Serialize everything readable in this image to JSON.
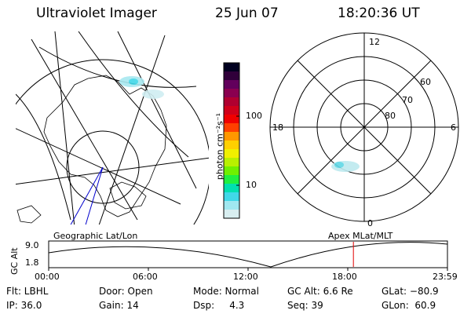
{
  "header": {
    "instrument": "Ultraviolet Imager",
    "date": "25 Jun 07",
    "time": "18:20:36 UT"
  },
  "left_panel": {
    "label": "Geographic Lat/Lon"
  },
  "right_panel": {
    "label": "Apex  MLat/MLT",
    "mlt_labels": [
      "12",
      "18",
      "6",
      "0"
    ],
    "lat_labels": [
      "60",
      "70",
      "80"
    ]
  },
  "colorbar": {
    "unit_label": "photon cm⁻²s⁻¹",
    "ticks": [
      "100",
      "10"
    ],
    "colors": [
      "#000020",
      "#30003a",
      "#62005c",
      "#8a0050",
      "#b00030",
      "#d0001a",
      "#f00000",
      "#ff4000",
      "#ff9800",
      "#ffd000",
      "#f0f000",
      "#b8f000",
      "#70f000",
      "#20f040",
      "#00e0b0",
      "#40d8e8",
      "#a0e8f0",
      "#d8eef0"
    ]
  },
  "orbit": {
    "y_label": "GC Alt",
    "y_ticks": [
      "9.0",
      "1.8"
    ],
    "x_ticks": [
      "00:00",
      "06:00",
      "12:00",
      "18:00",
      "23:59"
    ],
    "current_time_hours": 18.34,
    "marker_color": "#e00000"
  },
  "footer": {
    "col1": [
      "Flt: LBHL",
      "IP: 36.0"
    ],
    "col2": [
      "Door: Open",
      "Gain: 14"
    ],
    "col3": [
      "Mode: Normal",
      "Dsp:     4.3"
    ],
    "col4": [
      "GC Alt: 6.6 Re",
      "Seq: 39"
    ],
    "col5": [
      "GLat: −80.9",
      "GLon:  60.9"
    ]
  }
}
